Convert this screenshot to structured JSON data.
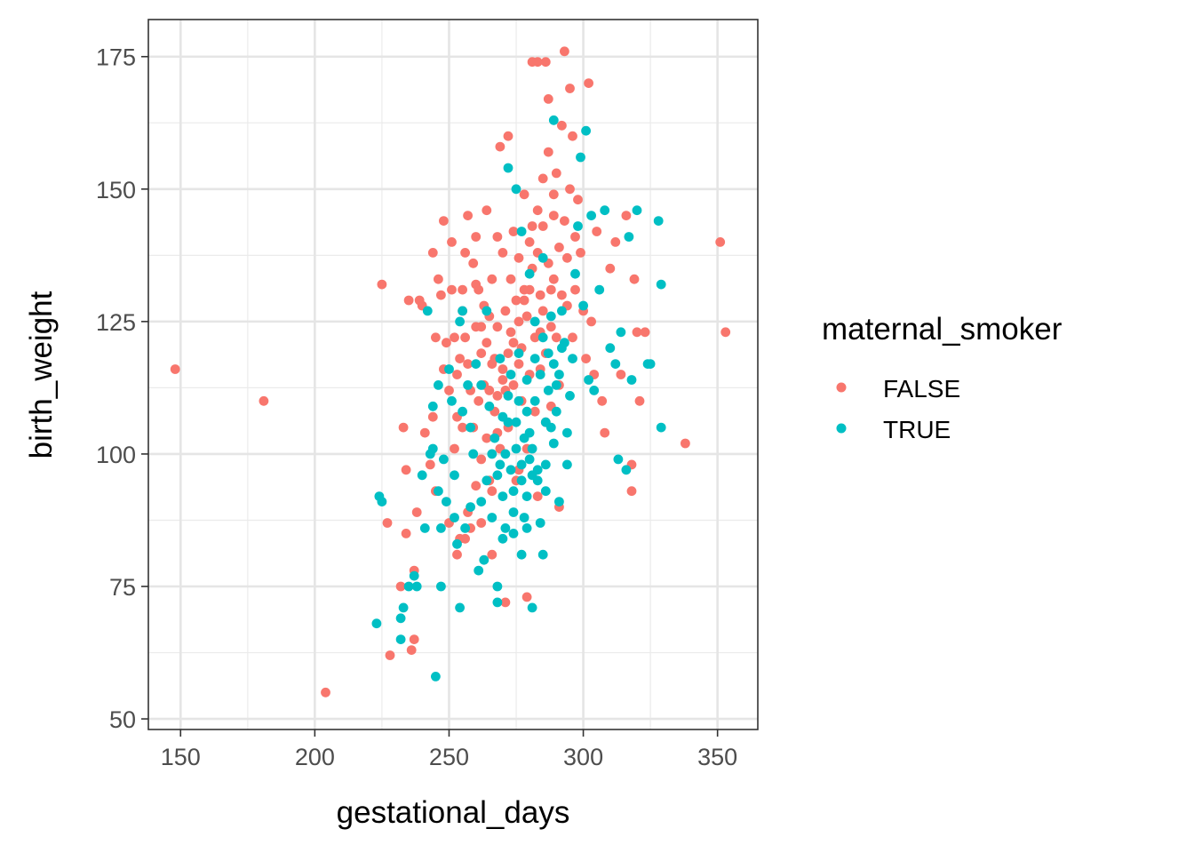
{
  "chart_data": {
    "type": "scatter",
    "title": "",
    "xlabel": "gestational_days",
    "ylabel": "birth_weight",
    "xlim": [
      138,
      365
    ],
    "ylim": [
      48,
      182
    ],
    "x_ticks": [
      150,
      200,
      250,
      300,
      350
    ],
    "y_ticks": [
      50,
      75,
      100,
      125,
      150,
      175
    ],
    "grid": true,
    "legend": {
      "title": "maternal_smoker",
      "position": "right",
      "entries": [
        {
          "label": "FALSE",
          "color": "#F8766D"
        },
        {
          "label": "TRUE",
          "color": "#00BFC4"
        }
      ]
    },
    "series": [
      {
        "name": "FALSE",
        "color": "#F8766D",
        "points": [
          [
            148,
            116
          ],
          [
            181,
            110
          ],
          [
            204,
            55
          ],
          [
            225,
            132
          ],
          [
            227,
            87
          ],
          [
            228,
            62
          ],
          [
            232,
            75
          ],
          [
            233,
            105
          ],
          [
            234,
            85
          ],
          [
            234,
            97
          ],
          [
            235,
            129
          ],
          [
            236,
            63
          ],
          [
            237,
            78
          ],
          [
            237,
            65
          ],
          [
            238,
            89
          ],
          [
            239,
            129
          ],
          [
            240,
            128
          ],
          [
            241,
            104
          ],
          [
            243,
            98
          ],
          [
            244,
            138
          ],
          [
            244,
            107
          ],
          [
            245,
            122
          ],
          [
            245,
            93
          ],
          [
            246,
            133
          ],
          [
            247,
            130
          ],
          [
            248,
            116
          ],
          [
            248,
            144
          ],
          [
            249,
            121
          ],
          [
            250,
            87
          ],
          [
            250,
            112
          ],
          [
            251,
            131
          ],
          [
            251,
            140
          ],
          [
            252,
            122
          ],
          [
            252,
            101
          ],
          [
            253,
            115
          ],
          [
            253,
            81
          ],
          [
            254,
            118
          ],
          [
            254,
            84
          ],
          [
            255,
            131
          ],
          [
            255,
            127
          ],
          [
            255,
            105
          ],
          [
            256,
            138
          ],
          [
            256,
            122
          ],
          [
            257,
            145
          ],
          [
            257,
            117
          ],
          [
            257,
            89
          ],
          [
            258,
            112
          ],
          [
            258,
            86
          ],
          [
            259,
            136
          ],
          [
            259,
            105
          ],
          [
            260,
            141
          ],
          [
            260,
            124
          ],
          [
            260,
            94
          ],
          [
            261,
            110
          ],
          [
            261,
            131
          ],
          [
            262,
            99
          ],
          [
            262,
            119
          ],
          [
            263,
            113
          ],
          [
            263,
            128
          ],
          [
            264,
            146
          ],
          [
            264,
            103
          ],
          [
            265,
            112
          ],
          [
            265,
            95
          ],
          [
            265,
            126
          ],
          [
            266,
            133
          ],
          [
            266,
            81
          ],
          [
            267,
            118
          ],
          [
            267,
            108
          ],
          [
            268,
            124
          ],
          [
            268,
            141
          ],
          [
            269,
            101
          ],
          [
            269,
            158
          ],
          [
            270,
            138
          ],
          [
            270,
            116
          ],
          [
            271,
            127
          ],
          [
            271,
            72
          ],
          [
            272,
            160
          ],
          [
            272,
            105
          ],
          [
            273,
            133
          ],
          [
            273,
            123
          ],
          [
            274,
            113
          ],
          [
            274,
            142
          ],
          [
            275,
            129
          ],
          [
            275,
            95
          ],
          [
            276,
            117
          ],
          [
            276,
            137
          ],
          [
            277,
            120
          ],
          [
            277,
            110
          ],
          [
            278,
            131
          ],
          [
            278,
            149
          ],
          [
            279,
            126
          ],
          [
            279,
            73
          ],
          [
            280,
            140
          ],
          [
            280,
            115
          ],
          [
            281,
            174
          ],
          [
            281,
            135
          ],
          [
            282,
            122
          ],
          [
            282,
            108
          ],
          [
            283,
            138
          ],
          [
            283,
            174
          ],
          [
            284,
            130
          ],
          [
            284,
            116
          ],
          [
            285,
            143
          ],
          [
            285,
            127
          ],
          [
            286,
            174
          ],
          [
            286,
            119
          ],
          [
            287,
            136
          ],
          [
            287,
            167
          ],
          [
            288,
            131
          ],
          [
            288,
            124
          ],
          [
            289,
            145
          ],
          [
            289,
            133
          ],
          [
            290,
            153
          ],
          [
            290,
            122
          ],
          [
            291,
            139
          ],
          [
            291,
            113
          ],
          [
            292,
            162
          ],
          [
            292,
            130
          ],
          [
            293,
            144
          ],
          [
            293,
            176
          ],
          [
            294,
            128
          ],
          [
            294,
            137
          ],
          [
            295,
            169
          ],
          [
            295,
            150
          ],
          [
            296,
            122
          ],
          [
            296,
            160
          ],
          [
            297,
            131
          ],
          [
            297,
            141
          ],
          [
            298,
            148
          ],
          [
            299,
            138
          ],
          [
            300,
            127
          ],
          [
            301,
            118
          ],
          [
            302,
            170
          ],
          [
            303,
            125
          ],
          [
            304,
            115
          ],
          [
            305,
            142
          ],
          [
            307,
            110
          ],
          [
            308,
            104
          ],
          [
            310,
            135
          ],
          [
            312,
            140
          ],
          [
            314,
            115
          ],
          [
            316,
            145
          ],
          [
            318,
            98
          ],
          [
            318,
            93
          ],
          [
            319,
            133
          ],
          [
            320,
            123
          ],
          [
            321,
            110
          ],
          [
            323,
            123
          ],
          [
            338,
            102
          ],
          [
            351,
            140
          ],
          [
            353,
            123
          ],
          [
            253,
            107
          ],
          [
            256,
            84
          ],
          [
            262,
            87
          ],
          [
            266,
            93
          ],
          [
            268,
            104
          ],
          [
            271,
            112
          ],
          [
            276,
            97
          ],
          [
            279,
            101
          ],
          [
            283,
            92
          ],
          [
            284,
            123
          ],
          [
            286,
            106
          ],
          [
            288,
            109
          ],
          [
            291,
            90
          ],
          [
            289,
            149
          ],
          [
            287,
            157
          ],
          [
            285,
            152
          ],
          [
            283,
            146
          ],
          [
            281,
            143
          ],
          [
            280,
            131
          ],
          [
            278,
            129
          ],
          [
            276,
            125
          ],
          [
            274,
            121
          ],
          [
            272,
            119
          ],
          [
            270,
            114
          ],
          [
            268,
            111
          ],
          [
            266,
            117
          ],
          [
            264,
            121
          ],
          [
            262,
            124
          ],
          [
            260,
            132
          ]
        ]
      },
      {
        "name": "TRUE",
        "color": "#00BFC4",
        "points": [
          [
            223,
            68
          ],
          [
            224,
            92
          ],
          [
            225,
            91
          ],
          [
            232,
            69
          ],
          [
            232,
            65
          ],
          [
            233,
            71
          ],
          [
            235,
            75
          ],
          [
            237,
            77
          ],
          [
            238,
            75
          ],
          [
            240,
            96
          ],
          [
            241,
            86
          ],
          [
            242,
            127
          ],
          [
            243,
            100
          ],
          [
            244,
            109
          ],
          [
            244,
            101
          ],
          [
            245,
            58
          ],
          [
            246,
            113
          ],
          [
            246,
            93
          ],
          [
            247,
            86
          ],
          [
            247,
            75
          ],
          [
            248,
            99
          ],
          [
            249,
            91
          ],
          [
            250,
            116
          ],
          [
            251,
            110
          ],
          [
            252,
            96
          ],
          [
            252,
            88
          ],
          [
            253,
            83
          ],
          [
            254,
            71
          ],
          [
            254,
            125
          ],
          [
            255,
            127
          ],
          [
            255,
            108
          ],
          [
            256,
            86
          ],
          [
            257,
            113
          ],
          [
            258,
            90
          ],
          [
            259,
            100
          ],
          [
            260,
            117
          ],
          [
            261,
            78
          ],
          [
            262,
            91
          ],
          [
            263,
            80
          ],
          [
            264,
            95
          ],
          [
            264,
            127
          ],
          [
            265,
            109
          ],
          [
            266,
            88
          ],
          [
            267,
            103
          ],
          [
            268,
            75
          ],
          [
            268,
            72
          ],
          [
            269,
            118
          ],
          [
            270,
            92
          ],
          [
            270,
            84
          ],
          [
            271,
            100
          ],
          [
            272,
            154
          ],
          [
            272,
            111
          ],
          [
            273,
            97
          ],
          [
            274,
            89
          ],
          [
            274,
            85
          ],
          [
            275,
            150
          ],
          [
            275,
            106
          ],
          [
            276,
            119
          ],
          [
            277,
            142
          ],
          [
            277,
            95
          ],
          [
            278,
            103
          ],
          [
            278,
            88
          ],
          [
            279,
            114
          ],
          [
            279,
            108
          ],
          [
            280,
            134
          ],
          [
            280,
            99
          ],
          [
            281,
            71
          ],
          [
            282,
            110
          ],
          [
            282,
            125
          ],
          [
            283,
            97
          ],
          [
            284,
            115
          ],
          [
            284,
            87
          ],
          [
            285,
            81
          ],
          [
            285,
            137
          ],
          [
            286,
            106
          ],
          [
            286,
            93
          ],
          [
            287,
            119
          ],
          [
            288,
            126
          ],
          [
            289,
            102
          ],
          [
            289,
            163
          ],
          [
            290,
            108
          ],
          [
            291,
            115
          ],
          [
            291,
            91
          ],
          [
            292,
            127
          ],
          [
            293,
            121
          ],
          [
            294,
            104
          ],
          [
            295,
            111
          ],
          [
            296,
            118
          ],
          [
            297,
            134
          ],
          [
            298,
            143
          ],
          [
            299,
            156
          ],
          [
            300,
            128
          ],
          [
            301,
            161
          ],
          [
            302,
            114
          ],
          [
            303,
            145
          ],
          [
            304,
            112
          ],
          [
            306,
            131
          ],
          [
            308,
            146
          ],
          [
            310,
            120
          ],
          [
            312,
            117
          ],
          [
            313,
            99
          ],
          [
            314,
            123
          ],
          [
            316,
            97
          ],
          [
            317,
            141
          ],
          [
            318,
            114
          ],
          [
            320,
            146
          ],
          [
            324,
            117
          ],
          [
            325,
            117
          ],
          [
            328,
            144
          ],
          [
            329,
            132
          ],
          [
            329,
            105
          ],
          [
            258,
            105
          ],
          [
            262,
            113
          ],
          [
            266,
            100
          ],
          [
            269,
            98
          ],
          [
            272,
            106
          ],
          [
            275,
            101
          ],
          [
            277,
            98
          ],
          [
            279,
            92
          ],
          [
            281,
            101
          ],
          [
            283,
            95
          ],
          [
            286,
            98
          ],
          [
            288,
            105
          ],
          [
            290,
            113
          ],
          [
            292,
            120
          ],
          [
            294,
            98
          ],
          [
            270,
            107
          ],
          [
            273,
            115
          ],
          [
            276,
            110
          ],
          [
            280,
            104
          ],
          [
            282,
            118
          ],
          [
            285,
            122
          ],
          [
            287,
            112
          ],
          [
            289,
            117
          ],
          [
            268,
            96
          ],
          [
            271,
            86
          ],
          [
            274,
            93
          ],
          [
            277,
            81
          ],
          [
            279,
            86
          ],
          [
            281,
            96
          ]
        ]
      }
    ]
  }
}
